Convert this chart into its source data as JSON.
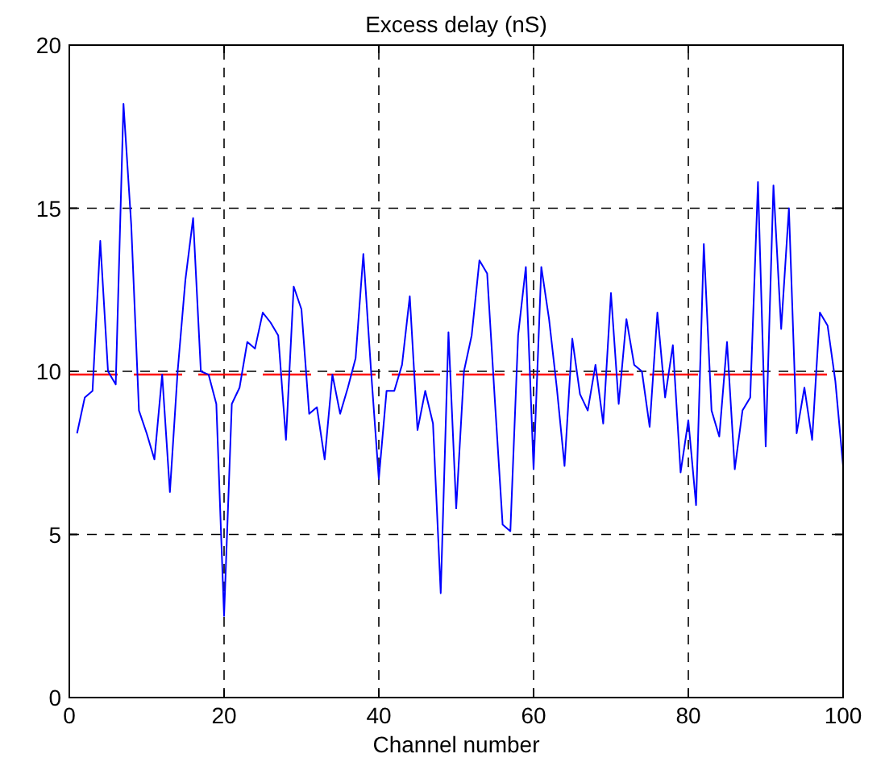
{
  "chart_data": {
    "type": "line",
    "title": "Excess delay (nS)",
    "xlabel": "Channel number",
    "x": [
      1,
      2,
      3,
      4,
      5,
      6,
      7,
      8,
      9,
      10,
      11,
      12,
      13,
      14,
      15,
      16,
      17,
      18,
      19,
      20,
      21,
      22,
      23,
      24,
      25,
      26,
      27,
      28,
      29,
      30,
      31,
      32,
      33,
      34,
      35,
      36,
      37,
      38,
      39,
      40,
      41,
      42,
      43,
      44,
      45,
      46,
      47,
      48,
      49,
      50,
      51,
      52,
      53,
      54,
      55,
      56,
      57,
      58,
      59,
      60,
      61,
      62,
      63,
      64,
      65,
      66,
      67,
      68,
      69,
      70,
      71,
      72,
      73,
      74,
      75,
      76,
      77,
      78,
      79,
      80,
      81,
      82,
      83,
      84,
      85,
      86,
      87,
      88,
      89,
      90,
      91,
      92,
      93,
      94,
      95,
      96,
      97,
      98,
      99,
      100
    ],
    "series": [
      {
        "color": "#0000ff",
        "values": [
          8.1,
          9.2,
          9.4,
          14.0,
          10.0,
          9.6,
          18.2,
          14.5,
          8.8,
          8.1,
          7.3,
          9.9,
          6.3,
          10.0,
          12.8,
          14.7,
          10.0,
          9.9,
          9.0,
          2.5,
          9.0,
          9.5,
          10.9,
          10.7,
          11.8,
          11.5,
          11.1,
          7.9,
          12.6,
          11.9,
          8.7,
          8.9,
          7.3,
          9.9,
          8.7,
          9.5,
          10.4,
          13.6,
          10.0,
          6.7,
          9.4,
          9.4,
          10.2,
          12.3,
          8.2,
          9.4,
          8.4,
          3.2,
          11.2,
          5.8,
          10.0,
          11.1,
          13.4,
          13.0,
          9.1,
          5.3,
          5.1,
          11.1,
          13.2,
          7.0,
          13.2,
          11.6,
          9.5,
          7.1,
          11.0,
          9.3,
          8.8,
          10.2,
          8.4,
          12.4,
          9.0,
          11.6,
          10.2,
          10.0,
          8.3,
          11.8,
          9.2,
          10.8,
          6.9,
          8.5,
          5.9,
          13.9,
          8.8,
          8.0,
          10.9,
          7.0,
          8.8,
          9.2,
          15.8,
          7.7,
          15.7,
          11.3,
          15.0,
          8.1,
          9.5,
          7.9,
          11.8,
          11.4,
          9.7,
          7.1
        ]
      }
    ],
    "ref_lines": [
      {
        "axis": "y",
        "value": 9.9,
        "color": "#ff0000",
        "line_style": "dashed"
      }
    ],
    "xlim": [
      0,
      100
    ],
    "xticks": [
      0,
      20,
      40,
      60,
      80,
      100
    ],
    "ylim": [
      0,
      20
    ],
    "yticks": [
      0,
      5,
      10,
      15,
      20
    ],
    "grid": true,
    "line_style": "solid",
    "marker": "none"
  }
}
